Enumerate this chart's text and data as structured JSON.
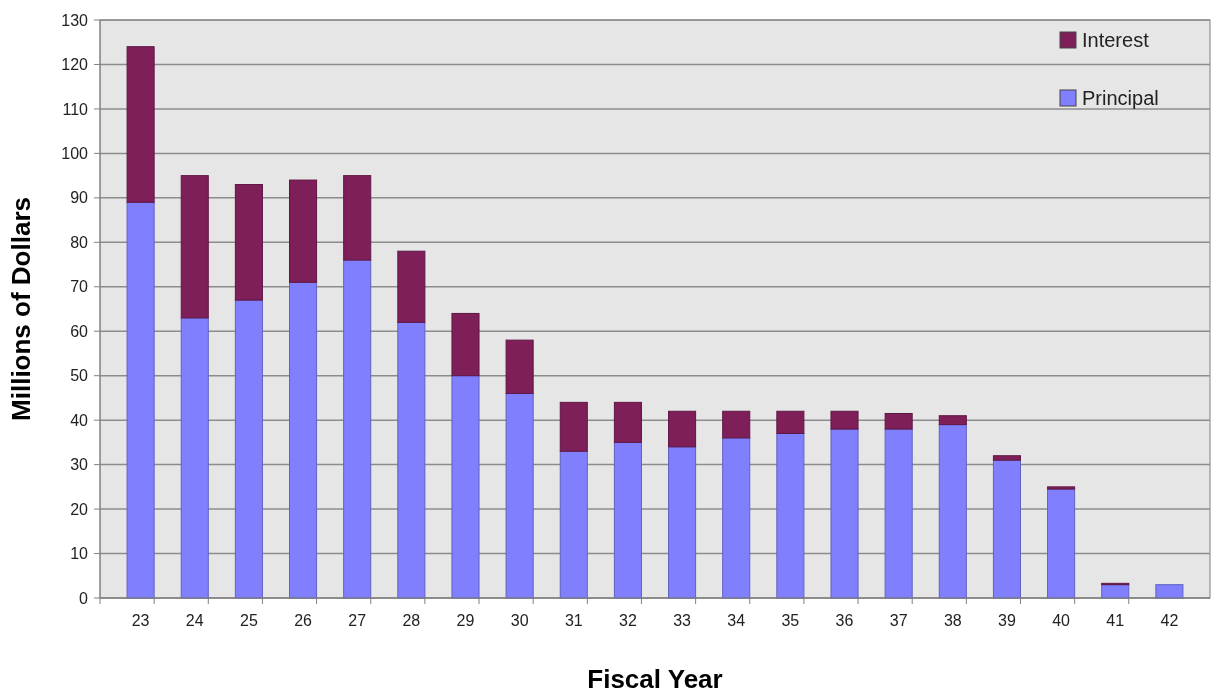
{
  "chart_data": {
    "type": "bar",
    "stacked": true,
    "xlabel": "Fiscal Year",
    "ylabel": "Millions of Dollars",
    "categories": [
      "23",
      "24",
      "25",
      "26",
      "27",
      "28",
      "29",
      "30",
      "31",
      "32",
      "33",
      "34",
      "35",
      "36",
      "37",
      "38",
      "39",
      "40",
      "41",
      "42"
    ],
    "series": [
      {
        "name": "Principal",
        "color": "#8080ff",
        "values": [
          89,
          63,
          67,
          71,
          76,
          62,
          50,
          46,
          33,
          35,
          34,
          36,
          37,
          38,
          38,
          39,
          31,
          24.5,
          3,
          3
        ]
      },
      {
        "name": "Interest",
        "color": "#7f1f5a",
        "values": [
          35,
          32,
          26,
          23,
          19,
          16,
          14,
          12,
          11,
          9,
          8,
          6,
          5,
          4,
          3.5,
          2,
          1,
          0.5,
          0.3,
          0
        ]
      }
    ],
    "ylim": [
      0,
      130
    ],
    "yticks": [
      0,
      10,
      20,
      30,
      40,
      50,
      60,
      70,
      80,
      90,
      100,
      110,
      120,
      130
    ],
    "grid": "y",
    "legend": "top right"
  }
}
